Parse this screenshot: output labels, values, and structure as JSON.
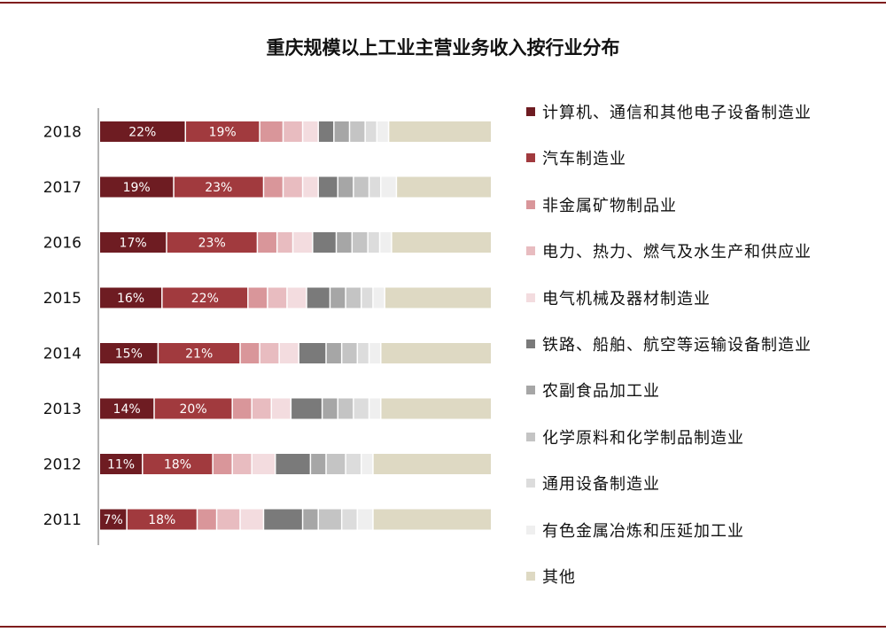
{
  "chart_data": {
    "type": "bar",
    "orientation": "horizontal",
    "stacked": true,
    "normalized": true,
    "title": "重庆规模以上工业主营业务收入按行业分布",
    "categories": [
      "2018",
      "2017",
      "2016",
      "2015",
      "2014",
      "2013",
      "2012",
      "2011"
    ],
    "series": [
      {
        "name": "计算机、通信和其他电子设备制造业",
        "color": "#6e1c22",
        "values": [
          22,
          19,
          17,
          16,
          15,
          14,
          11,
          7
        ]
      },
      {
        "name": "汽车制造业",
        "color": "#a13a3e",
        "values": [
          19,
          23,
          23,
          22,
          21,
          20,
          18,
          18
        ]
      },
      {
        "name": "非金属矿物制品业",
        "color": "#d9969a",
        "values": [
          6,
          5,
          5,
          5,
          5,
          5,
          5,
          5
        ]
      },
      {
        "name": "电力、热力、燃气及水生产和供应业",
        "color": "#e8bcc0",
        "values": [
          5,
          5,
          4,
          5,
          5,
          5,
          5,
          6
        ]
      },
      {
        "name": "电气机械及器材制造业",
        "color": "#f3dcdf",
        "values": [
          4,
          4,
          5,
          5,
          5,
          5,
          6,
          6
        ]
      },
      {
        "name": "铁路、船舶、航空等运输设备制造业",
        "color": "#7a7a7a",
        "values": [
          4,
          5,
          6,
          6,
          7,
          8,
          9,
          10
        ]
      },
      {
        "name": "农副食品加工业",
        "color": "#a6a6a6",
        "values": [
          4,
          4,
          4,
          4,
          4,
          4,
          4,
          4
        ]
      },
      {
        "name": "化学原料和化学制品制造业",
        "color": "#c4c4c4",
        "values": [
          4,
          4,
          4,
          4,
          4,
          4,
          5,
          6
        ]
      },
      {
        "name": "通用设备制造业",
        "color": "#dcdcdc",
        "values": [
          3,
          3,
          3,
          3,
          3,
          4,
          4,
          4
        ]
      },
      {
        "name": "有色金属冶炼和压延加工业",
        "color": "#efefef",
        "values": [
          3,
          4,
          3,
          3,
          3,
          3,
          3,
          4
        ]
      },
      {
        "name": "其他",
        "color": "#ded9c3",
        "values": [
          26,
          24,
          25,
          27,
          28,
          28,
          30,
          30
        ]
      }
    ],
    "labeled_series": [
      0,
      1
    ],
    "xlim": [
      0,
      100
    ],
    "grid": false,
    "legend_position": "right"
  }
}
